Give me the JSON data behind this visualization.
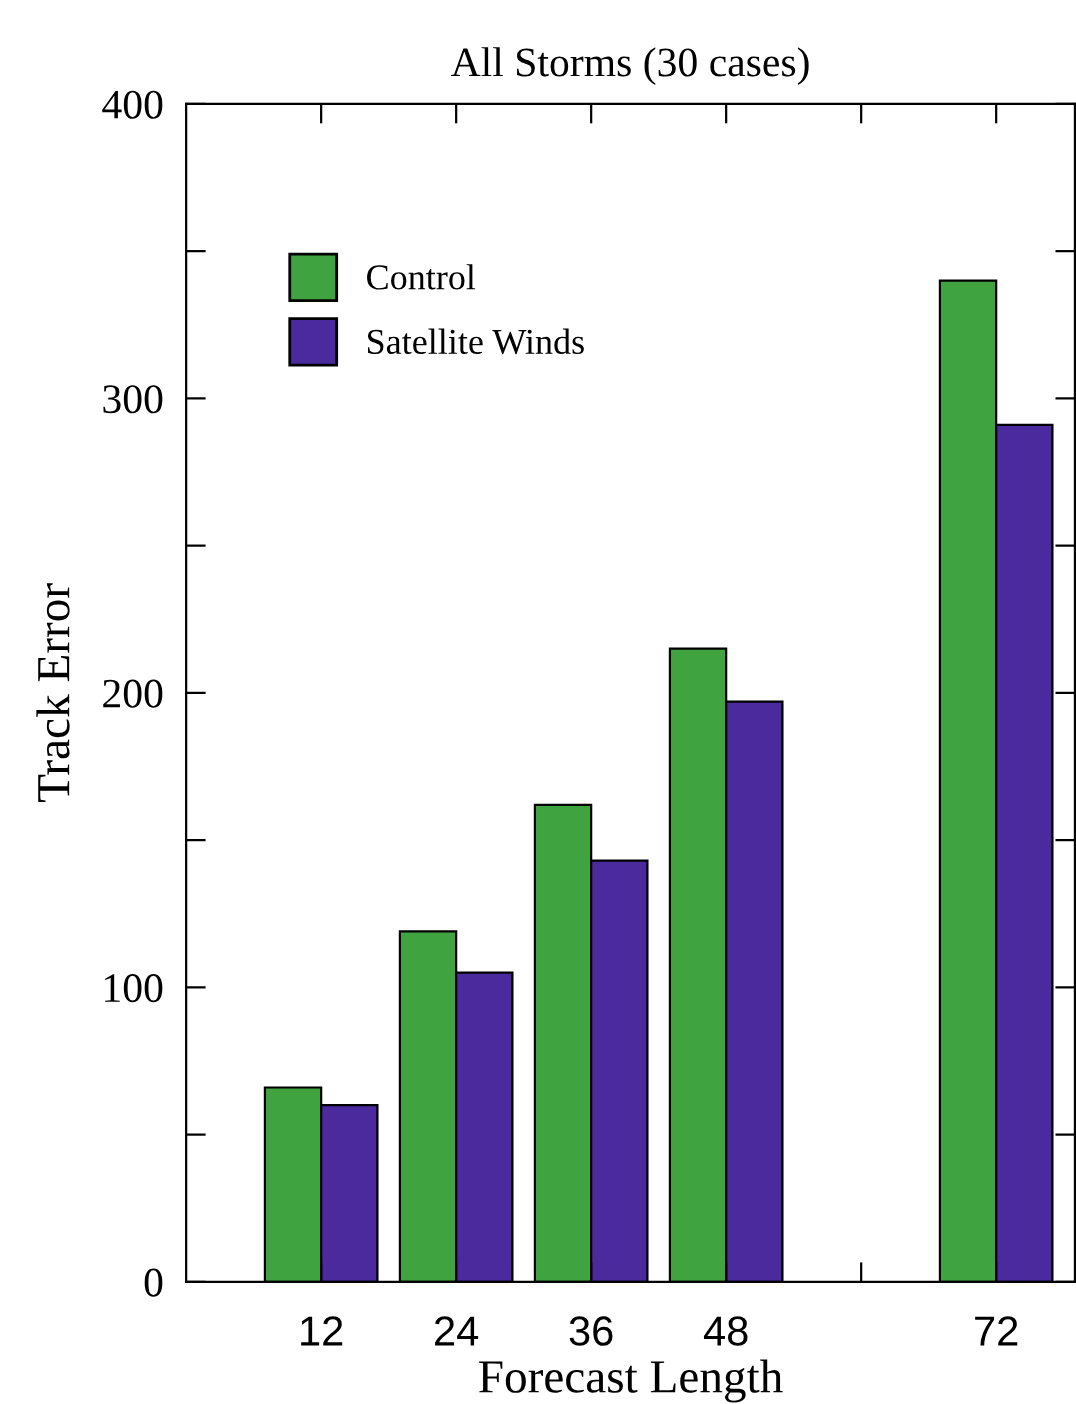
{
  "chart_data": {
    "type": "bar",
    "title": "All Storms (30 cases)",
    "xlabel": "Forecast Length",
    "ylabel": "Track Error",
    "x": [
      12,
      24,
      36,
      48,
      72
    ],
    "series": [
      {
        "name": "Control",
        "color": "#3fa33f",
        "values": [
          66,
          119,
          162,
          215,
          340
        ]
      },
      {
        "name": "Satellite Winds",
        "color": "#4a2a9c",
        "values": [
          60,
          105,
          143,
          197,
          291
        ]
      }
    ],
    "xlim": [
      0,
      79
    ],
    "xticks": [
      12,
      24,
      36,
      48,
      {
        "value": 60,
        "label": null
      },
      72
    ],
    "ylim": [
      0,
      400
    ],
    "yticks": [
      0,
      {
        "value": 50,
        "label": null
      },
      100,
      {
        "value": 150,
        "label": null
      },
      200,
      {
        "value": 250,
        "label": null
      },
      300,
      {
        "value": 350,
        "label": null
      },
      400
    ],
    "grid": false,
    "legend": "top left"
  }
}
